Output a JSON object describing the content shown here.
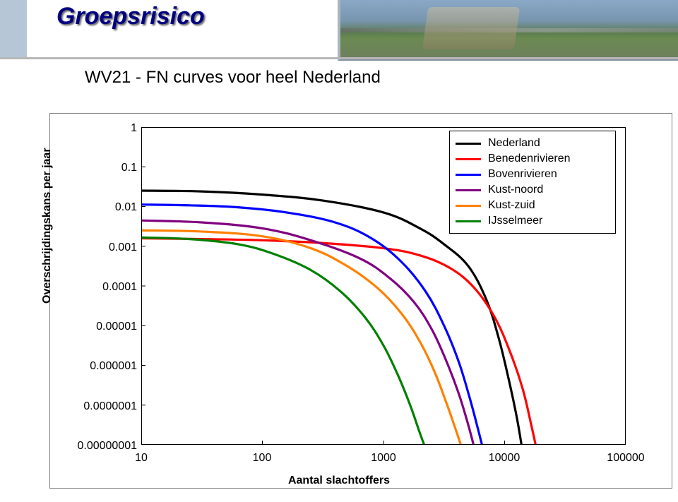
{
  "title": "Groepsrisico",
  "subtitle": "WV21 - FN curves voor heel Nederland",
  "chart": {
    "type": "line-loglog",
    "xlabel": "Aantal slachtoffers",
    "ylabel": "Overschrijdingskans per jaar",
    "x_ticks": [
      "10",
      "100",
      "1000",
      "10000",
      "100000"
    ],
    "y_ticks": [
      "1",
      "0.1",
      "0.01",
      "0.001",
      "0.0001",
      "0.00001",
      "0.000001",
      "0.0000001",
      "0.00000001"
    ],
    "x_log_range": [
      1,
      5
    ],
    "y_log_range": [
      -8,
      0
    ],
    "background_color": "#ffffff",
    "axis_color": "#000000",
    "frame_border_color": "#808080",
    "line_width": 3.2,
    "colors": {
      "Nederland": "#000000",
      "Benedenrivieren": "#ff0000",
      "Bovenrivieren": "#0000ff",
      "Kust-noord": "#800080",
      "Kust-zuid": "#ff8000",
      "IJsselmeer": "#008000"
    },
    "series": [
      {
        "name": "Nederland",
        "points": [
          [
            1.0,
            -1.6
          ],
          [
            1.5,
            -1.62
          ],
          [
            2.0,
            -1.7
          ],
          [
            2.5,
            -1.85
          ],
          [
            3.0,
            -2.15
          ],
          [
            3.3,
            -2.55
          ],
          [
            3.5,
            -2.95
          ],
          [
            3.7,
            -3.5
          ],
          [
            3.85,
            -4.35
          ],
          [
            3.95,
            -5.3
          ],
          [
            4.03,
            -6.3
          ],
          [
            4.1,
            -7.3
          ],
          [
            4.15,
            -8.2
          ]
        ]
      },
      {
        "name": "Benedenrivieren",
        "points": [
          [
            1.0,
            -2.8
          ],
          [
            1.5,
            -2.82
          ],
          [
            2.0,
            -2.85
          ],
          [
            2.5,
            -2.92
          ],
          [
            3.0,
            -3.05
          ],
          [
            3.3,
            -3.23
          ],
          [
            3.55,
            -3.55
          ],
          [
            3.75,
            -4.05
          ],
          [
            3.92,
            -4.8
          ],
          [
            4.05,
            -5.7
          ],
          [
            4.15,
            -6.6
          ],
          [
            4.22,
            -7.5
          ],
          [
            4.27,
            -8.2
          ]
        ]
      },
      {
        "name": "Bovenrivieren",
        "points": [
          [
            1.0,
            -1.95
          ],
          [
            1.4,
            -1.97
          ],
          [
            1.8,
            -2.02
          ],
          [
            2.2,
            -2.15
          ],
          [
            2.6,
            -2.4
          ],
          [
            2.9,
            -2.8
          ],
          [
            3.15,
            -3.4
          ],
          [
            3.35,
            -4.15
          ],
          [
            3.5,
            -5.0
          ],
          [
            3.62,
            -5.9
          ],
          [
            3.71,
            -6.8
          ],
          [
            3.78,
            -7.6
          ],
          [
            3.83,
            -8.2
          ]
        ]
      },
      {
        "name": "Kust-noord",
        "points": [
          [
            1.0,
            -2.35
          ],
          [
            1.5,
            -2.4
          ],
          [
            2.0,
            -2.55
          ],
          [
            2.4,
            -2.85
          ],
          [
            2.8,
            -3.3
          ],
          [
            3.05,
            -3.8
          ],
          [
            3.25,
            -4.4
          ],
          [
            3.4,
            -5.1
          ],
          [
            3.52,
            -5.9
          ],
          [
            3.62,
            -6.7
          ],
          [
            3.7,
            -7.5
          ],
          [
            3.76,
            -8.2
          ]
        ]
      },
      {
        "name": "Kust-zuid",
        "points": [
          [
            1.0,
            -2.6
          ],
          [
            1.5,
            -2.63
          ],
          [
            2.0,
            -2.75
          ],
          [
            2.4,
            -3.05
          ],
          [
            2.7,
            -3.5
          ],
          [
            2.95,
            -4.05
          ],
          [
            3.15,
            -4.7
          ],
          [
            3.3,
            -5.4
          ],
          [
            3.42,
            -6.15
          ],
          [
            3.52,
            -6.95
          ],
          [
            3.6,
            -7.65
          ],
          [
            3.66,
            -8.2
          ]
        ]
      },
      {
        "name": "IJsselmeer",
        "points": [
          [
            1.0,
            -2.78
          ],
          [
            1.4,
            -2.82
          ],
          [
            1.8,
            -2.95
          ],
          [
            2.1,
            -3.2
          ],
          [
            2.4,
            -3.6
          ],
          [
            2.65,
            -4.15
          ],
          [
            2.85,
            -4.8
          ],
          [
            3.0,
            -5.5
          ],
          [
            3.12,
            -6.25
          ],
          [
            3.22,
            -7.0
          ],
          [
            3.3,
            -7.7
          ],
          [
            3.36,
            -8.2
          ]
        ]
      }
    ],
    "legend": [
      "Nederland",
      "Benedenrivieren",
      "Bovenrivieren",
      "Kust-noord",
      "Kust-zuid",
      "IJsselmeer"
    ]
  }
}
